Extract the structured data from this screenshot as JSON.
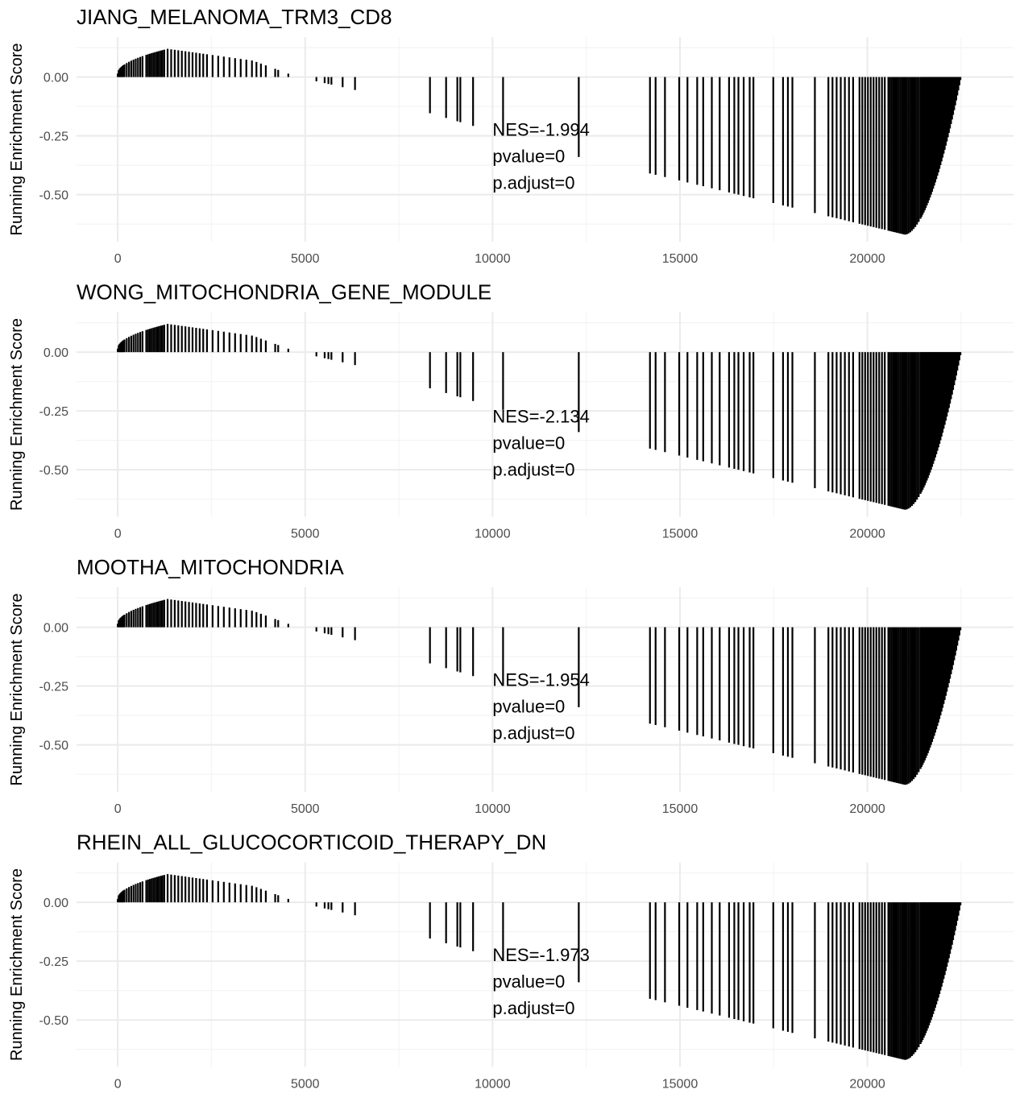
{
  "chart_data": [
    {
      "type": "bar",
      "title": "JIANG_MELANOMA_TRM3_CD8",
      "ylabel": "Running Enrichment Score",
      "xlabel": "",
      "xlim": [
        -1100,
        23900
      ],
      "ylim": [
        -0.7,
        0.17
      ],
      "x_ticks": [
        0,
        5000,
        10000,
        15000,
        20000
      ],
      "y_ticks": [
        0.0,
        -0.25,
        -0.5
      ],
      "y_tick_labels": [
        "0.00",
        "-0.25",
        "-0.50"
      ],
      "annotation": [
        "NES=-1.994",
        "pvalue=0",
        "p.adjust=0"
      ],
      "annotation_anchor": {
        "x": 10000,
        "y": -0.25
      },
      "min_es": {
        "rank": 21000,
        "value": -0.67
      }
    },
    {
      "type": "bar",
      "title": "WONG_MITOCHONDRIA_GENE_MODULE",
      "ylabel": "Running Enrichment Score",
      "xlabel": "",
      "xlim": [
        -1100,
        23900
      ],
      "ylim": [
        -0.7,
        0.17
      ],
      "x_ticks": [
        0,
        5000,
        10000,
        15000,
        20000
      ],
      "y_ticks": [
        0.0,
        -0.25,
        -0.5
      ],
      "y_tick_labels": [
        "0.00",
        "-0.25",
        "-0.50"
      ],
      "annotation": [
        "NES=-2.134",
        "pvalue=0",
        "p.adjust=0"
      ],
      "annotation_anchor": {
        "x": 10000,
        "y": -0.3
      },
      "min_es": {
        "rank": 21000,
        "value": -0.67
      }
    },
    {
      "type": "bar",
      "title": "MOOTHA_MITOCHONDRIA",
      "ylabel": "Running Enrichment Score",
      "xlabel": "",
      "xlim": [
        -1100,
        23900
      ],
      "ylim": [
        -0.7,
        0.17
      ],
      "x_ticks": [
        0,
        5000,
        10000,
        15000,
        20000
      ],
      "y_ticks": [
        0.0,
        -0.25,
        -0.5
      ],
      "y_tick_labels": [
        "0.00",
        "-0.25",
        "-0.50"
      ],
      "annotation": [
        "NES=-1.954",
        "pvalue=0",
        "p.adjust=0"
      ],
      "annotation_anchor": {
        "x": 10000,
        "y": -0.25
      },
      "min_es": {
        "rank": 21000,
        "value": -0.67
      }
    },
    {
      "type": "bar",
      "title": "RHEIN_ALL_GLUCOCORTICOID_THERAPY_DN",
      "ylabel": "Running Enrichment Score",
      "xlabel": "",
      "xlim": [
        -1100,
        23900
      ],
      "ylim": [
        -0.7,
        0.17
      ],
      "x_ticks": [
        0,
        5000,
        10000,
        15000,
        20000
      ],
      "y_ticks": [
        0.0,
        -0.25,
        -0.5
      ],
      "y_tick_labels": [
        "0.00",
        "-0.25",
        "-0.50"
      ],
      "annotation": [
        "NES=-1.973",
        "pvalue=0",
        "p.adjust=0"
      ],
      "annotation_anchor": {
        "x": 10000,
        "y": -0.25
      },
      "min_es": {
        "rank": 21000,
        "value": -0.67
      }
    }
  ],
  "colors": {
    "bars": "#000000",
    "grid_major": "#ebebeb",
    "grid_minor": "#f4f4f4",
    "tick_text": "#4d4d4d",
    "title": "#000000"
  }
}
